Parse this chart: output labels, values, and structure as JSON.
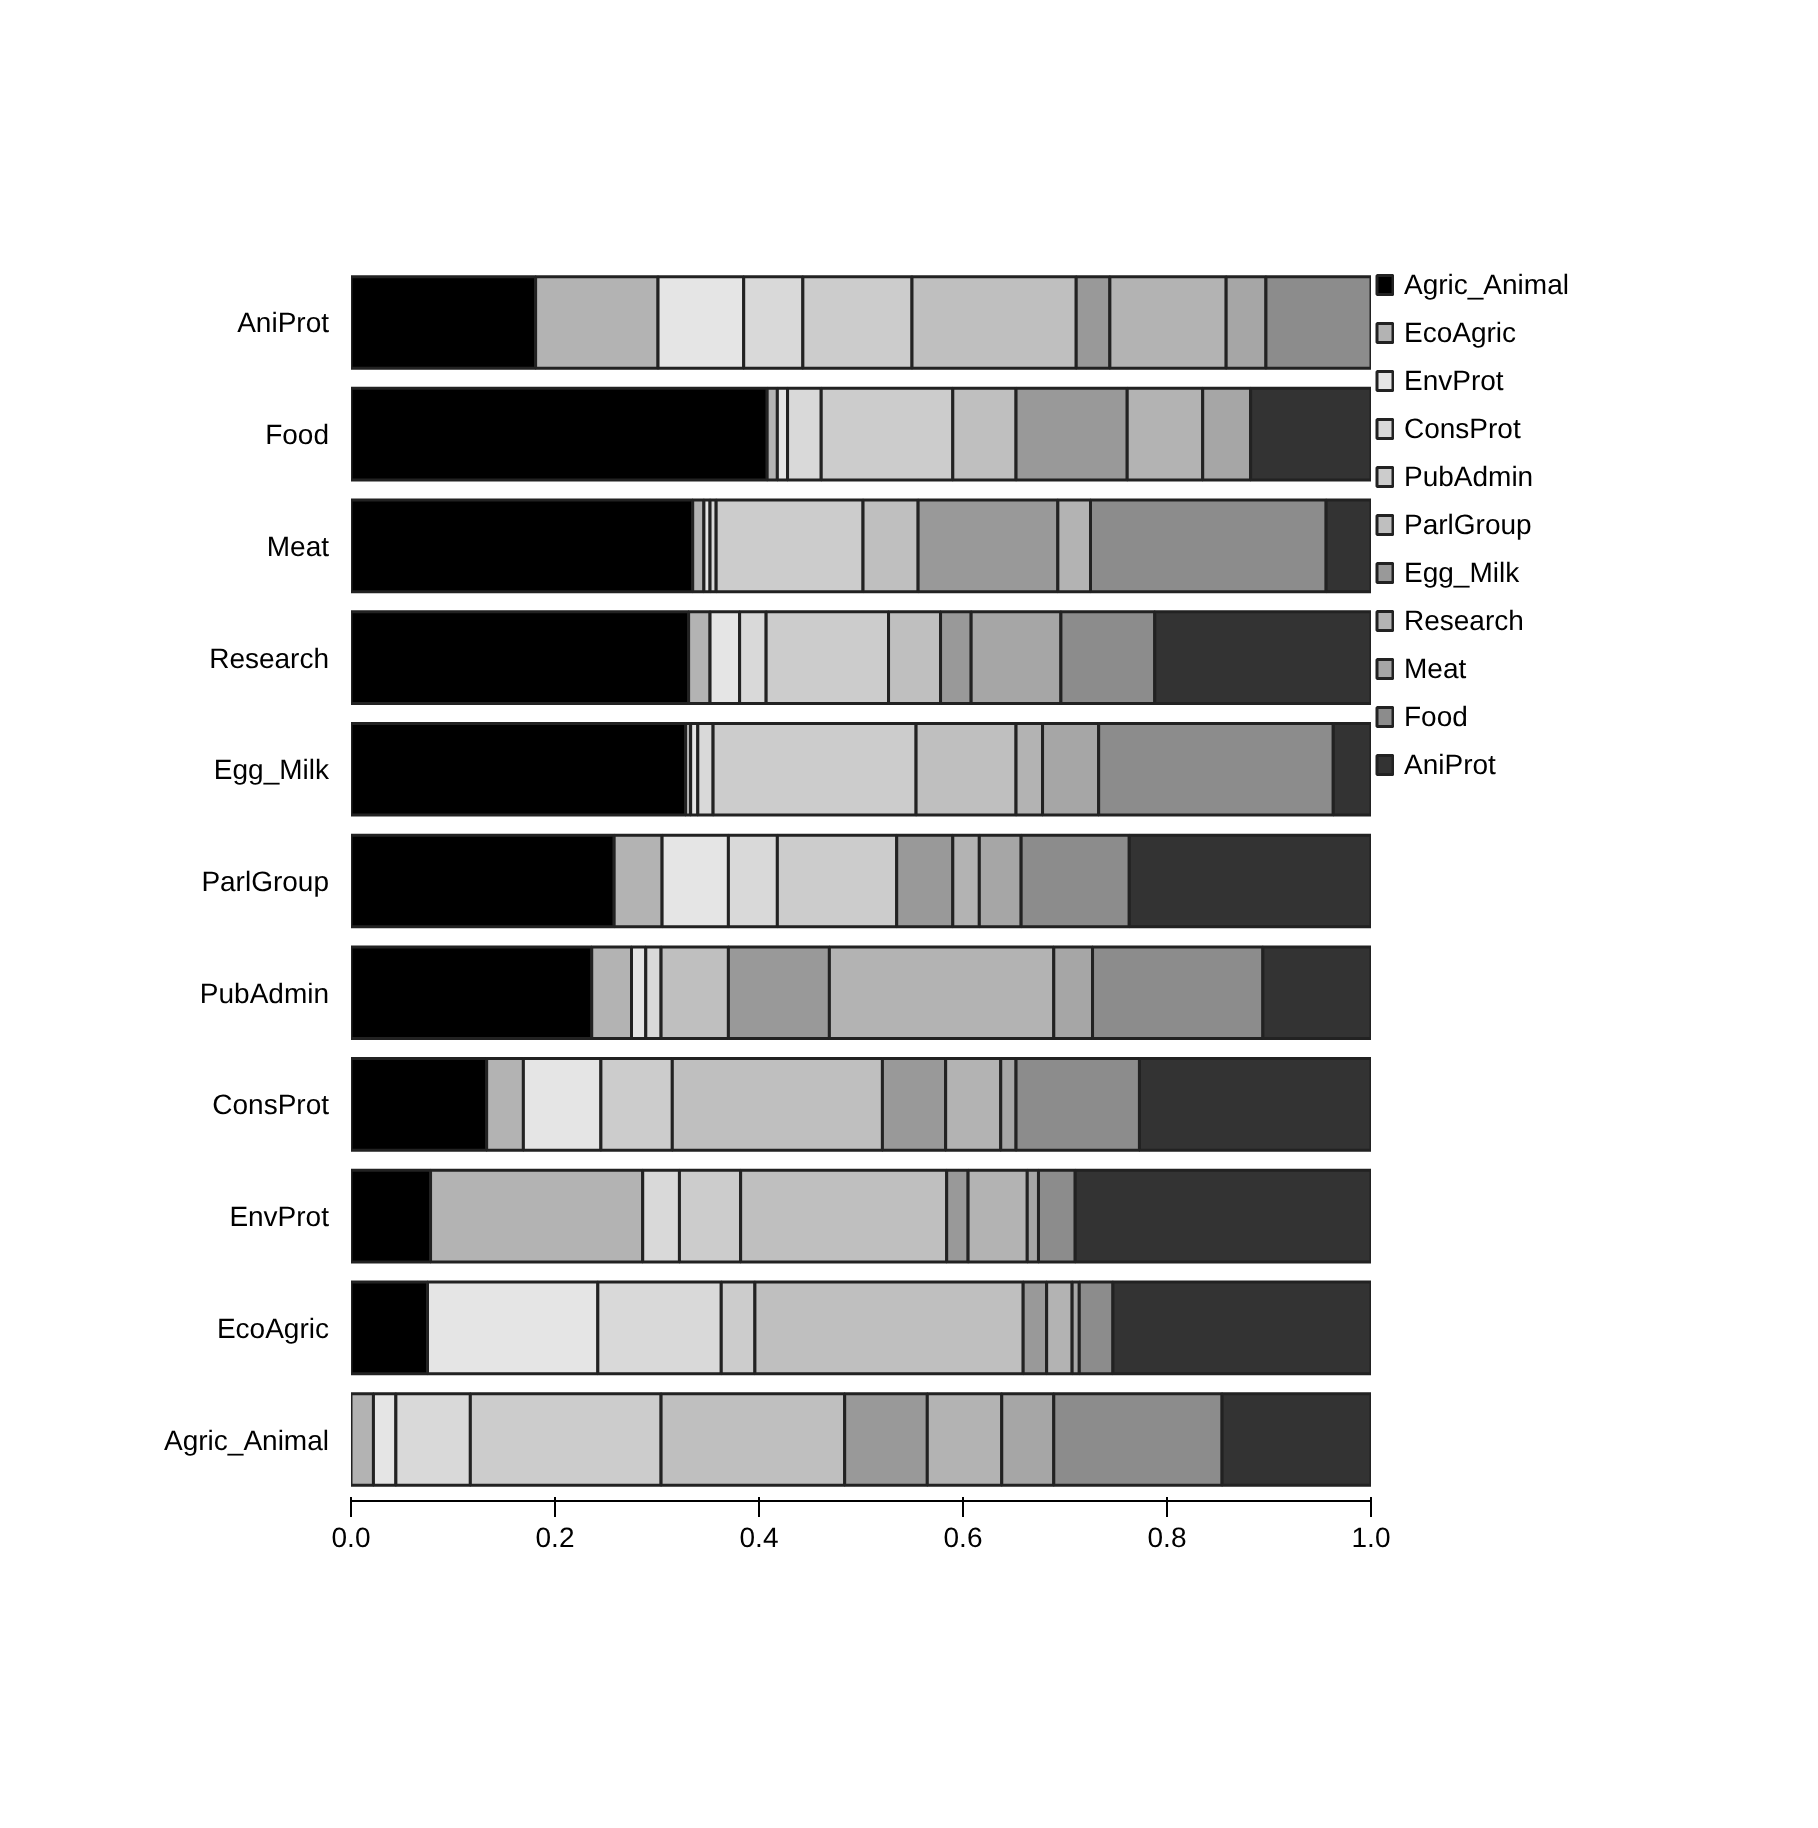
{
  "chart_data": {
    "type": "bar",
    "orientation": "horizontal",
    "stacked": true,
    "categories": [
      "AniProt",
      "Food",
      "Meat",
      "Research",
      "Egg_Milk",
      "ParlGroup",
      "PubAdmin",
      "ConsProt",
      "EnvProt",
      "EcoAgric",
      "Agric_Animal"
    ],
    "series": [
      {
        "name": "Agric_Animal",
        "color": "#000000",
        "values": [
          0.181,
          0.408,
          0.335,
          0.331,
          0.328,
          0.258,
          0.236,
          0.133,
          0.078,
          0.075,
          0
        ]
      },
      {
        "name": "EcoAgric",
        "color": "#b3b3b3",
        "values": [
          0.12,
          0.01,
          0.011,
          0.021,
          0.005,
          0.047,
          0.039,
          0.036,
          0.208,
          0,
          0.022
        ]
      },
      {
        "name": "EnvProt",
        "color": "#e5e5e5",
        "values": [
          0.084,
          0.01,
          0.006,
          0.029,
          0.007,
          0.065,
          0.014,
          0.076,
          0,
          0.167,
          0.022
        ]
      },
      {
        "name": "ConsProt",
        "color": "#d9d9d9",
        "values": [
          0.058,
          0.033,
          0.006,
          0.026,
          0.015,
          0.048,
          0.015,
          0,
          0.036,
          0.121,
          0.073
        ]
      },
      {
        "name": "PubAdmin",
        "color": "#cccccc",
        "values": [
          0.107,
          0.129,
          0.144,
          0.12,
          0.199,
          0.117,
          0,
          0.07,
          0.06,
          0.033,
          0.187
        ]
      },
      {
        "name": "ParlGroup",
        "color": "#bfbfbf",
        "values": [
          0.161,
          0.062,
          0.054,
          0.051,
          0.098,
          0,
          0.066,
          0.206,
          0.202,
          0.263,
          0.18
        ]
      },
      {
        "name": "Egg_Milk",
        "color": "#999999",
        "values": [
          0.033,
          0.109,
          0.137,
          0.03,
          0,
          0.055,
          0.099,
          0.062,
          0.021,
          0.023,
          0.081
        ]
      },
      {
        "name": "Research",
        "color": "#b3b3b3",
        "values": [
          0.114,
          0.074,
          0.032,
          0,
          0.026,
          0.026,
          0.22,
          0.054,
          0.058,
          0.025,
          0.073
        ]
      },
      {
        "name": "Meat",
        "color": "#a6a6a6",
        "values": [
          0.039,
          0.047,
          0,
          0.088,
          0.055,
          0.041,
          0.038,
          0.015,
          0.011,
          0.007,
          0.051
        ]
      },
      {
        "name": "Food",
        "color": "#8c8c8c",
        "values": [
          0.103,
          0,
          0.231,
          0.092,
          0.23,
          0.106,
          0.167,
          0.121,
          0.036,
          0.033,
          0.165
        ]
      },
      {
        "name": "AniProt",
        "color": "#333333",
        "values": [
          0,
          0.118,
          0.044,
          0.212,
          0.037,
          0.237,
          0.106,
          0.227,
          0.29,
          0.253,
          0.146
        ]
      }
    ],
    "xlim": [
      0,
      1
    ],
    "xticks": [
      {
        "value": 0,
        "label": "0.0"
      },
      {
        "value": 0.2,
        "label": "0.2"
      },
      {
        "value": 0.4,
        "label": "0.4"
      },
      {
        "value": 0.6,
        "label": "0.6"
      },
      {
        "value": 0.8,
        "label": "0.8"
      },
      {
        "value": 1,
        "label": "1.0"
      }
    ],
    "grid": false,
    "legend": "top right"
  }
}
